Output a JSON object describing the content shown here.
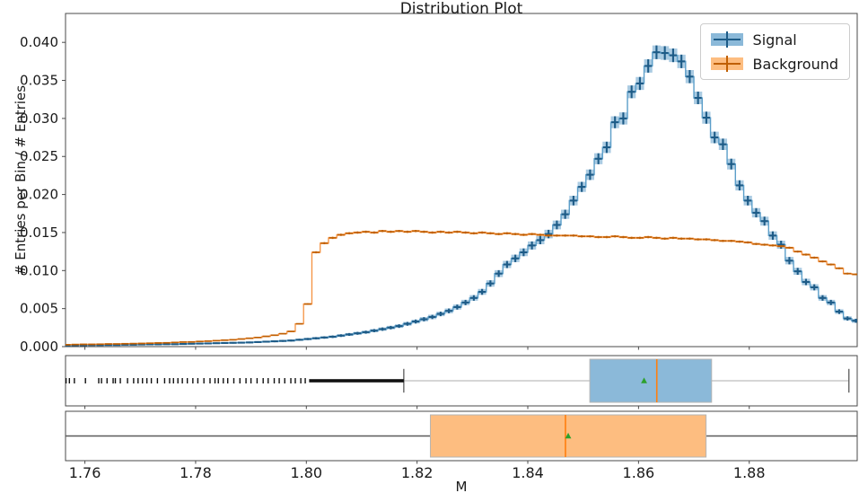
{
  "title": "Distribution Plot",
  "xlabel": "M",
  "ylabel": "# Entries per Bin / # Entries",
  "legend": {
    "position": "upper right",
    "items": [
      {
        "label": "Signal",
        "series": "signal"
      },
      {
        "label": "Background",
        "series": "background"
      }
    ]
  },
  "colors": {
    "signal_band": "rgba(31,119,180,0.38)",
    "signal_line": "#5b9ec9",
    "signal_err": "#1d5b87",
    "signal_box_fill": "#8bb9d9",
    "background_band": "rgba(255,127,14,0.42)",
    "background_line": "#f59140",
    "background_err": "#c05f02",
    "background_box_fill": "#fdbd80",
    "median_line": "#ff7f0e",
    "mean_marker": "#2ca02c",
    "whisker_signal": "#c8c8c8",
    "whisker_background": "#5a5a5a",
    "flier": "#111111",
    "spine": "#4a4a4a",
    "box_edge": "#b5b5b5"
  },
  "chart_data": {
    "type": "histogram",
    "title": "Distribution Plot",
    "xlabel": "M",
    "ylabel": "# Entries per Bin / # Entries",
    "grid": false,
    "legend_position": "upper right",
    "bin_start": 1.756,
    "bin_width": 0.0015,
    "unit_scale": 0.001,
    "xlim": [
      1.7565,
      1.8995
    ],
    "ylim": [
      0,
      0.0438
    ],
    "xticks": {
      "values": [
        1.76,
        1.78,
        1.8,
        1.82,
        1.84,
        1.86,
        1.88
      ],
      "labels": [
        "1.76",
        "1.78",
        "1.80",
        "1.82",
        "1.84",
        "1.86",
        "1.88"
      ]
    },
    "yticks": {
      "values": [
        0,
        0.005,
        0.01,
        0.015,
        0.02,
        0.025,
        0.03,
        0.035,
        0.04
      ],
      "labels": [
        "0.000",
        "0.005",
        "0.010",
        "0.015",
        "0.020",
        "0.025",
        "0.030",
        "0.035",
        "0.040"
      ]
    },
    "series": [
      {
        "name": "Signal",
        "style": "step-errorband-errorbar",
        "err_coeff": 0.00458,
        "values_milli": [
          0.15,
          0.18,
          0.18,
          0.2,
          0.2,
          0.22,
          0.22,
          0.25,
          0.25,
          0.28,
          0.3,
          0.3,
          0.32,
          0.32,
          0.35,
          0.38,
          0.4,
          0.42,
          0.45,
          0.48,
          0.5,
          0.52,
          0.55,
          0.6,
          0.65,
          0.7,
          0.75,
          0.8,
          0.9,
          1.0,
          1.1,
          1.2,
          1.3,
          1.45,
          1.6,
          1.75,
          1.9,
          2.1,
          2.3,
          2.5,
          2.7,
          3.0,
          3.3,
          3.6,
          3.9,
          4.3,
          4.7,
          5.2,
          5.8,
          6.4,
          7.2,
          8.3,
          9.6,
          10.8,
          11.6,
          12.4,
          13.3,
          14.0,
          14.8,
          16.0,
          17.4,
          19.2,
          21.0,
          22.6,
          24.7,
          26.2,
          29.5,
          30.0,
          33.5,
          34.6,
          36.9,
          38.7,
          38.6,
          38.3,
          37.5,
          35.5,
          32.7,
          30.1,
          27.5,
          26.6,
          24.0,
          21.2,
          19.2,
          17.6,
          16.5,
          14.6,
          13.4,
          11.3,
          9.9,
          8.5,
          7.8,
          6.4,
          5.8,
          4.6,
          3.7,
          3.4
        ]
      },
      {
        "name": "Background",
        "style": "step-errorband-errorbar",
        "err_coeff": 0.0012,
        "values_milli": [
          0.25,
          0.28,
          0.3,
          0.3,
          0.32,
          0.35,
          0.35,
          0.38,
          0.4,
          0.42,
          0.45,
          0.48,
          0.5,
          0.55,
          0.6,
          0.62,
          0.68,
          0.72,
          0.78,
          0.85,
          0.9,
          1.0,
          1.1,
          1.2,
          1.35,
          1.5,
          1.7,
          2.0,
          3.0,
          5.6,
          12.4,
          13.6,
          14.3,
          14.7,
          14.9,
          15.0,
          15.1,
          15.0,
          15.2,
          15.1,
          15.2,
          15.1,
          15.2,
          15.1,
          15.0,
          15.1,
          15.0,
          15.1,
          15.0,
          14.9,
          15.0,
          14.9,
          14.8,
          14.9,
          14.8,
          14.7,
          14.8,
          14.7,
          14.6,
          14.6,
          14.6,
          14.6,
          14.5,
          14.5,
          14.4,
          14.4,
          14.5,
          14.4,
          14.3,
          14.3,
          14.4,
          14.3,
          14.2,
          14.3,
          14.2,
          14.2,
          14.1,
          14.1,
          14.0,
          13.9,
          13.9,
          13.8,
          13.7,
          13.5,
          13.4,
          13.3,
          13.2,
          13.0,
          12.5,
          12.1,
          11.7,
          11.2,
          10.8,
          10.3,
          9.6,
          9.5
        ]
      }
    ],
    "boxplots": [
      {
        "name": "Signal",
        "q1": 1.8512,
        "median": 1.8633,
        "q3": 1.8732,
        "mean": 1.861,
        "whisker_low": 1.8176,
        "whisker_high": 1.898,
        "fliers_dense_range": [
          1.8005,
          1.8176
        ],
        "fliers": [
          1.7566,
          1.7572,
          1.7581,
          1.7601,
          1.7625,
          1.763,
          1.764,
          1.7651,
          1.7655,
          1.7664,
          1.7677,
          1.7688,
          1.7696,
          1.7704,
          1.7712,
          1.772,
          1.7731,
          1.7744,
          1.7753,
          1.776,
          1.7768,
          1.7776,
          1.7785,
          1.7795,
          1.7804,
          1.7815,
          1.7826,
          1.7835,
          1.7841,
          1.785,
          1.7858,
          1.7869,
          1.788,
          1.7891,
          1.79,
          1.7911,
          1.7922,
          1.7931,
          1.7942,
          1.7951,
          1.7961,
          1.7972,
          1.798,
          1.799,
          1.7998
        ]
      },
      {
        "name": "Background",
        "q1": 1.8224,
        "median": 1.8468,
        "q3": 1.8722,
        "mean": 1.8473,
        "whisker_low": 1.7565,
        "whisker_high": 1.8995,
        "fliers_dense_range": null,
        "fliers": []
      }
    ]
  }
}
